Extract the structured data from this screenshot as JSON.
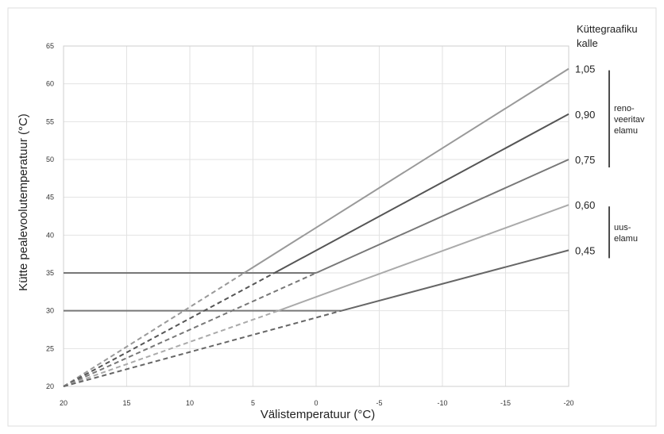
{
  "chart_data": {
    "type": "line",
    "xlabel": "Välistemperatuur (°C)",
    "ylabel": "Kütte pealevoolutemperatuur (°C)",
    "x_ticks": [
      "20",
      "15",
      "10",
      "5",
      "0",
      "-5",
      "-10",
      "-15",
      "-20"
    ],
    "x_values": [
      20,
      15,
      10,
      5,
      0,
      -5,
      -10,
      -15,
      -20
    ],
    "y_ticks": [
      "20",
      "25",
      "30",
      "35",
      "40",
      "45",
      "50",
      "55",
      "60",
      "65"
    ],
    "xlim": [
      20,
      -20
    ],
    "ylim": [
      20,
      65
    ],
    "grid": true,
    "legend_title": "Küttegraafiku kalle",
    "series": [
      {
        "name": "1,05",
        "color": "#999999",
        "dashed_from": [
          20,
          20
        ],
        "kink": [
          5.7,
          35
        ],
        "solid_to": [
          -20,
          62
        ],
        "floor": 35
      },
      {
        "name": "0,90",
        "color": "#555555",
        "dashed_from": [
          20,
          20
        ],
        "kink": [
          3.3,
          35
        ],
        "solid_to": [
          -20,
          56
        ],
        "floor": 35
      },
      {
        "name": "0,75",
        "color": "#777777",
        "dashed_from": [
          20,
          20
        ],
        "kink": [
          0,
          35
        ],
        "solid_to": [
          -20,
          50
        ],
        "floor": 35
      },
      {
        "name": "0,60",
        "color": "#aaaaaa",
        "dashed_from": [
          20,
          20
        ],
        "kink": [
          3,
          30
        ],
        "solid_to": [
          -20,
          44
        ],
        "floor": 30
      },
      {
        "name": "0,45",
        "color": "#666666",
        "dashed_from": [
          20,
          20
        ],
        "kink": [
          -2,
          30
        ],
        "solid_to": [
          -20,
          38
        ],
        "floor": 30
      }
    ],
    "floors": [
      {
        "y": 35,
        "x_from": 20,
        "x_to": 0
      },
      {
        "y": 30,
        "x_from": 20,
        "x_to": -2
      }
    ],
    "groups": [
      {
        "label_lines": [
          "reno-",
          "veeritav",
          "elamu"
        ],
        "members": [
          "1,05",
          "0,90",
          "0,75"
        ]
      },
      {
        "label_lines": [
          "uus-",
          "elamu"
        ],
        "members": [
          "0,60",
          "0,45"
        ]
      }
    ]
  }
}
